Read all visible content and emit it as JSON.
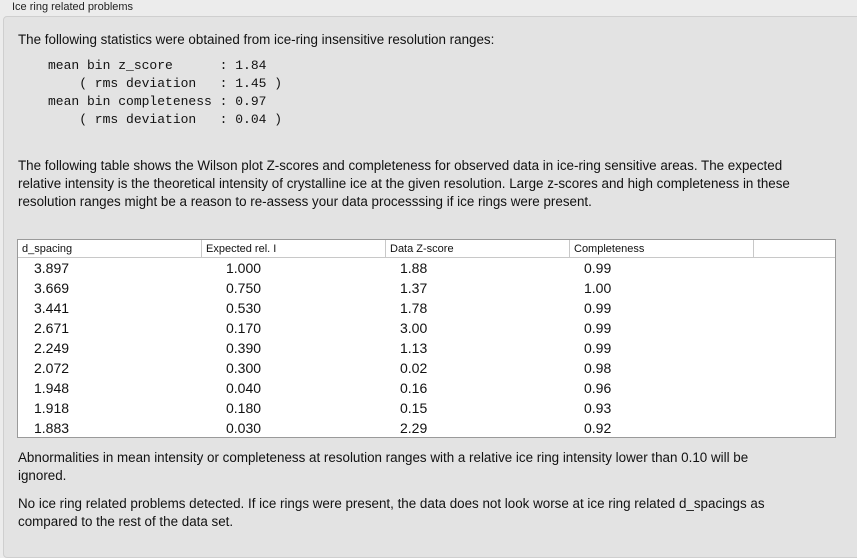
{
  "group_title": "Ice ring related problems",
  "intro": "The following statistics were obtained from ice-ring insensitive resolution ranges:",
  "stats": "mean bin z_score      : 1.84\n    ( rms deviation   : 1.45 )\nmean bin completeness : 0.97\n    ( rms deviation   : 0.04 )",
  "description": "The following table shows the Wilson plot Z-scores and completeness for observed data in ice-ring sensitive areas. The expected relative intensity is the theoretical intensity of crystalline ice at the given resolution. Large z-scores and high completeness in these resolution ranges might be a reason to re-assess your data processsing if ice rings were present.",
  "table": {
    "columns": [
      "d_spacing",
      "Expected rel. I",
      "Data Z-score",
      "Completeness"
    ],
    "rows": [
      [
        "3.897",
        "1.000",
        "1.88",
        "0.99"
      ],
      [
        "3.669",
        "0.750",
        "1.37",
        "1.00"
      ],
      [
        "3.441",
        "0.530",
        "1.78",
        "0.99"
      ],
      [
        "2.671",
        "0.170",
        "3.00",
        "0.99"
      ],
      [
        "2.249",
        "0.390",
        "1.13",
        "0.99"
      ],
      [
        "2.072",
        "0.300",
        "0.02",
        "0.98"
      ],
      [
        "1.948",
        "0.040",
        "0.16",
        "0.96"
      ],
      [
        "1.918",
        "0.180",
        "0.15",
        "0.93"
      ],
      [
        "1.883",
        "0.030",
        "2.29",
        "0.92"
      ]
    ]
  },
  "note": "Abnormalities in mean intensity or completeness at resolution ranges with a relative ice ring intensity lower than 0.10 will be ignored.",
  "conclusion": "No ice ring related problems detected. If ice rings were present, the data does not look worse at ice ring related d_spacings as compared to the rest of the data set."
}
